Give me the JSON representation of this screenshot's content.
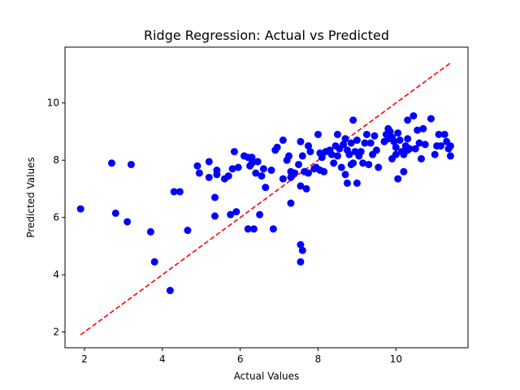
{
  "chart_data": {
    "type": "scatter",
    "title": "Ridge Regression: Actual vs Predicted",
    "xlabel": "Actual Values",
    "ylabel": "Predicted Values",
    "xlim": [
      1.5,
      11.85
    ],
    "ylim": [
      1.45,
      11.95
    ],
    "xticks": [
      2,
      4,
      6,
      8,
      10
    ],
    "yticks": [
      2,
      4,
      6,
      8,
      10
    ],
    "grid": false,
    "colors": {
      "points": "#0000ff",
      "reference_line": "#ff0000"
    },
    "reference_line": {
      "style": "dashed",
      "x": [
        1.9,
        11.4
      ],
      "y": [
        1.9,
        11.4
      ]
    },
    "points": [
      {
        "x": 1.9,
        "y": 6.3
      },
      {
        "x": 2.7,
        "y": 7.9
      },
      {
        "x": 2.8,
        "y": 6.15
      },
      {
        "x": 3.1,
        "y": 5.85
      },
      {
        "x": 3.2,
        "y": 7.85
      },
      {
        "x": 3.7,
        "y": 5.5
      },
      {
        "x": 3.8,
        "y": 4.45
      },
      {
        "x": 4.2,
        "y": 3.45
      },
      {
        "x": 4.3,
        "y": 6.9
      },
      {
        "x": 4.45,
        "y": 6.9
      },
      {
        "x": 4.65,
        "y": 5.55
      },
      {
        "x": 4.9,
        "y": 7.8
      },
      {
        "x": 4.95,
        "y": 7.55
      },
      {
        "x": 5.2,
        "y": 7.95
      },
      {
        "x": 5.2,
        "y": 7.4
      },
      {
        "x": 5.35,
        "y": 6.05
      },
      {
        "x": 5.35,
        "y": 6.7
      },
      {
        "x": 5.4,
        "y": 7.5
      },
      {
        "x": 5.4,
        "y": 7.65
      },
      {
        "x": 5.6,
        "y": 7.35
      },
      {
        "x": 5.7,
        "y": 7.45
      },
      {
        "x": 5.75,
        "y": 6.1
      },
      {
        "x": 5.8,
        "y": 7.7
      },
      {
        "x": 5.85,
        "y": 8.3
      },
      {
        "x": 5.9,
        "y": 6.2
      },
      {
        "x": 5.95,
        "y": 7.75
      },
      {
        "x": 6.1,
        "y": 8.15
      },
      {
        "x": 6.2,
        "y": 8.1
      },
      {
        "x": 6.2,
        "y": 5.6
      },
      {
        "x": 6.25,
        "y": 7.8
      },
      {
        "x": 6.3,
        "y": 7.9
      },
      {
        "x": 6.3,
        "y": 8.1
      },
      {
        "x": 6.35,
        "y": 5.6
      },
      {
        "x": 6.4,
        "y": 7.55
      },
      {
        "x": 6.45,
        "y": 7.95
      },
      {
        "x": 6.5,
        "y": 6.1
      },
      {
        "x": 6.55,
        "y": 7.45
      },
      {
        "x": 6.6,
        "y": 7.7
      },
      {
        "x": 6.65,
        "y": 7.05
      },
      {
        "x": 6.8,
        "y": 7.65
      },
      {
        "x": 6.85,
        "y": 5.6
      },
      {
        "x": 6.9,
        "y": 8.35
      },
      {
        "x": 6.95,
        "y": 8.45
      },
      {
        "x": 7.1,
        "y": 7.35
      },
      {
        "x": 7.1,
        "y": 8.7
      },
      {
        "x": 7.2,
        "y": 8.0
      },
      {
        "x": 7.25,
        "y": 8.15
      },
      {
        "x": 7.3,
        "y": 7.4
      },
      {
        "x": 7.3,
        "y": 6.5
      },
      {
        "x": 7.3,
        "y": 7.6
      },
      {
        "x": 7.4,
        "y": 7.55
      },
      {
        "x": 7.5,
        "y": 7.85
      },
      {
        "x": 7.55,
        "y": 7.1
      },
      {
        "x": 7.55,
        "y": 8.65
      },
      {
        "x": 7.55,
        "y": 5.05
      },
      {
        "x": 7.6,
        "y": 4.85
      },
      {
        "x": 7.55,
        "y": 4.45
      },
      {
        "x": 7.6,
        "y": 8.15
      },
      {
        "x": 7.65,
        "y": 7.6
      },
      {
        "x": 7.7,
        "y": 7.0
      },
      {
        "x": 7.75,
        "y": 7.55
      },
      {
        "x": 7.75,
        "y": 8.5
      },
      {
        "x": 7.8,
        "y": 8.3
      },
      {
        "x": 7.9,
        "y": 7.7
      },
      {
        "x": 7.95,
        "y": 7.75
      },
      {
        "x": 8.0,
        "y": 8.9
      },
      {
        "x": 8.05,
        "y": 7.65
      },
      {
        "x": 8.05,
        "y": 8.25
      },
      {
        "x": 8.1,
        "y": 8.1
      },
      {
        "x": 8.15,
        "y": 7.6
      },
      {
        "x": 8.2,
        "y": 8.3
      },
      {
        "x": 8.3,
        "y": 8.35
      },
      {
        "x": 8.35,
        "y": 8.2
      },
      {
        "x": 8.4,
        "y": 7.9
      },
      {
        "x": 8.45,
        "y": 8.5
      },
      {
        "x": 8.5,
        "y": 8.9
      },
      {
        "x": 8.5,
        "y": 8.15
      },
      {
        "x": 8.55,
        "y": 8.4
      },
      {
        "x": 8.6,
        "y": 7.75
      },
      {
        "x": 8.65,
        "y": 8.55
      },
      {
        "x": 8.7,
        "y": 7.5
      },
      {
        "x": 8.7,
        "y": 8.75
      },
      {
        "x": 8.75,
        "y": 8.35
      },
      {
        "x": 8.75,
        "y": 7.2
      },
      {
        "x": 8.8,
        "y": 8.2
      },
      {
        "x": 8.85,
        "y": 7.85
      },
      {
        "x": 8.85,
        "y": 8.6
      },
      {
        "x": 8.9,
        "y": 9.4
      },
      {
        "x": 8.9,
        "y": 7.9
      },
      {
        "x": 8.95,
        "y": 8.3
      },
      {
        "x": 9.0,
        "y": 7.2
      },
      {
        "x": 9.0,
        "y": 8.7
      },
      {
        "x": 9.05,
        "y": 8.15
      },
      {
        "x": 9.1,
        "y": 8.3
      },
      {
        "x": 9.15,
        "y": 7.9
      },
      {
        "x": 9.2,
        "y": 8.6
      },
      {
        "x": 9.25,
        "y": 8.9
      },
      {
        "x": 9.3,
        "y": 7.85
      },
      {
        "x": 9.35,
        "y": 8.6
      },
      {
        "x": 9.4,
        "y": 8.2
      },
      {
        "x": 9.45,
        "y": 8.85
      },
      {
        "x": 9.5,
        "y": 8.35
      },
      {
        "x": 9.55,
        "y": 7.75
      },
      {
        "x": 9.7,
        "y": 8.65
      },
      {
        "x": 9.75,
        "y": 8.9
      },
      {
        "x": 9.8,
        "y": 8.75
      },
      {
        "x": 9.8,
        "y": 9.1
      },
      {
        "x": 9.85,
        "y": 9.0
      },
      {
        "x": 9.9,
        "y": 8.8
      },
      {
        "x": 9.9,
        "y": 8.05
      },
      {
        "x": 9.95,
        "y": 8.65
      },
      {
        "x": 10.0,
        "y": 8.45
      },
      {
        "x": 10.0,
        "y": 8.2
      },
      {
        "x": 10.05,
        "y": 8.95
      },
      {
        "x": 10.05,
        "y": 7.35
      },
      {
        "x": 10.1,
        "y": 8.7
      },
      {
        "x": 10.15,
        "y": 8.3
      },
      {
        "x": 10.2,
        "y": 7.6
      },
      {
        "x": 10.2,
        "y": 8.2
      },
      {
        "x": 10.25,
        "y": 8.5
      },
      {
        "x": 10.3,
        "y": 8.75
      },
      {
        "x": 10.3,
        "y": 8.35
      },
      {
        "x": 10.3,
        "y": 9.4
      },
      {
        "x": 10.35,
        "y": 8.4
      },
      {
        "x": 10.45,
        "y": 9.55
      },
      {
        "x": 10.5,
        "y": 8.4
      },
      {
        "x": 10.55,
        "y": 9.05
      },
      {
        "x": 10.6,
        "y": 8.6
      },
      {
        "x": 10.65,
        "y": 8.05
      },
      {
        "x": 10.7,
        "y": 9.1
      },
      {
        "x": 10.75,
        "y": 8.55
      },
      {
        "x": 10.9,
        "y": 9.45
      },
      {
        "x": 11.0,
        "y": 8.2
      },
      {
        "x": 11.05,
        "y": 8.5
      },
      {
        "x": 11.1,
        "y": 8.9
      },
      {
        "x": 11.15,
        "y": 8.5
      },
      {
        "x": 11.25,
        "y": 8.9
      },
      {
        "x": 11.3,
        "y": 8.65
      },
      {
        "x": 11.35,
        "y": 8.4
      },
      {
        "x": 11.4,
        "y": 8.15
      },
      {
        "x": 11.4,
        "y": 8.5
      }
    ]
  }
}
